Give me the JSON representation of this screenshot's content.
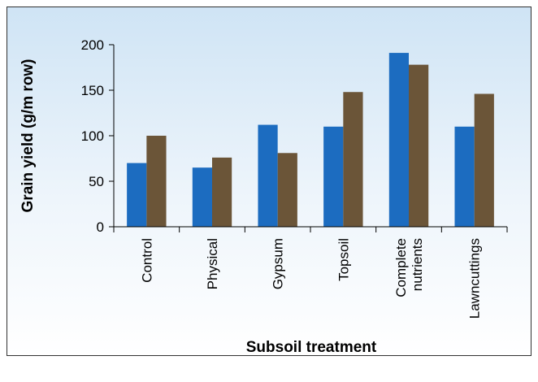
{
  "chart_data": {
    "type": "bar",
    "x_label": "Subsoil treatment",
    "y_label": "Grain yield (g/m row)",
    "categories": [
      "Control",
      "Physical",
      "Gypsum",
      "Topsoil",
      "Complete\nnutrients",
      "Lawncuttings"
    ],
    "series": [
      {
        "color": "#1c6cc0",
        "values": [
          70,
          65,
          112,
          110,
          191,
          110
        ]
      },
      {
        "color": "#6b5538",
        "values": [
          100,
          76,
          81,
          148,
          178,
          146
        ]
      }
    ],
    "ylim": [
      0,
      200
    ],
    "yticks": [
      0,
      50,
      100,
      150,
      200
    ],
    "grid": false
  }
}
